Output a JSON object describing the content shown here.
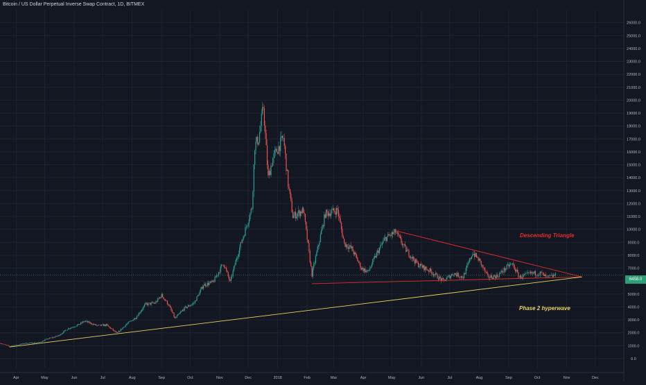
{
  "chart_data": {
    "type": "candlestick",
    "title": "Bitcoin / US Dollar Perpetual Inverse Swap Contract, 1D, BITMEX",
    "ylim": [
      -700,
      27000
    ],
    "y_ticks": [
      0,
      1000,
      2000,
      3000,
      4000,
      5000,
      6000,
      7000,
      8000,
      9000,
      10000,
      11000,
      12000,
      13000,
      14000,
      15000,
      16000,
      17000,
      18000,
      19000,
      20000,
      21000,
      22000,
      23000,
      24000,
      25000,
      26000
    ],
    "y_tick_labels": [
      "0.0",
      "1000.0",
      "2000.0",
      "3000.0",
      "4000.0",
      "5000.0",
      "6000.0",
      "7000.0",
      "8000.0",
      "9000.0",
      "10000.0",
      "11000.0",
      "12000.0",
      "13000.0",
      "14000.0",
      "15000.0",
      "16000.0",
      "17000.0",
      "18000.0",
      "19000.0",
      "20000.0",
      "21000.0",
      "22000.0",
      "23000.0",
      "24000.0",
      "25000.0",
      "26000.0"
    ],
    "x_start": "2017-03-15",
    "x_end": "2018-12-31",
    "x_ticks": [
      {
        "label": "Apr",
        "date": "2017-04-01"
      },
      {
        "label": "May",
        "date": "2017-05-01"
      },
      {
        "label": "Jun",
        "date": "2017-06-01"
      },
      {
        "label": "Jul",
        "date": "2017-07-01"
      },
      {
        "label": "Aug",
        "date": "2017-08-01"
      },
      {
        "label": "Sep",
        "date": "2017-09-01"
      },
      {
        "label": "Oct",
        "date": "2017-10-01"
      },
      {
        "label": "Nov",
        "date": "2017-11-01"
      },
      {
        "label": "Dec",
        "date": "2017-12-01"
      },
      {
        "label": "2018",
        "date": "2018-01-01"
      },
      {
        "label": "Feb",
        "date": "2018-02-01"
      },
      {
        "label": "Mar",
        "date": "2018-03-01"
      },
      {
        "label": "Apr",
        "date": "2018-04-01"
      },
      {
        "label": "May",
        "date": "2018-05-01"
      },
      {
        "label": "Jun",
        "date": "2018-06-01"
      },
      {
        "label": "Jul",
        "date": "2018-07-01"
      },
      {
        "label": "Aug",
        "date": "2018-08-01"
      },
      {
        "label": "Sep",
        "date": "2018-09-01"
      },
      {
        "label": "Oct",
        "date": "2018-10-01"
      },
      {
        "label": "Nov",
        "date": "2018-11-01"
      },
      {
        "label": "Dec",
        "date": "2018-12-01"
      }
    ],
    "price_path": [
      [
        "2017-03-15",
        1200
      ],
      [
        "2017-03-25",
        950
      ],
      [
        "2017-04-10",
        1180
      ],
      [
        "2017-04-25",
        1250
      ],
      [
        "2017-05-05",
        1550
      ],
      [
        "2017-05-15",
        1750
      ],
      [
        "2017-05-25",
        2300
      ],
      [
        "2017-06-05",
        2600
      ],
      [
        "2017-06-12",
        2900
      ],
      [
        "2017-06-25",
        2550
      ],
      [
        "2017-07-05",
        2600
      ],
      [
        "2017-07-16",
        1950
      ],
      [
        "2017-07-25",
        2600
      ],
      [
        "2017-08-05",
        3200
      ],
      [
        "2017-08-15",
        4200
      ],
      [
        "2017-08-25",
        4300
      ],
      [
        "2017-09-01",
        4900
      ],
      [
        "2017-09-08",
        4200
      ],
      [
        "2017-09-15",
        3100
      ],
      [
        "2017-09-25",
        3900
      ],
      [
        "2017-10-05",
        4300
      ],
      [
        "2017-10-15",
        5700
      ],
      [
        "2017-10-25",
        5900
      ],
      [
        "2017-11-05",
        7400
      ],
      [
        "2017-11-12",
        5900
      ],
      [
        "2017-11-20",
        8100
      ],
      [
        "2017-11-28",
        10000
      ],
      [
        "2017-12-05",
        11700
      ],
      [
        "2017-12-08",
        16500
      ],
      [
        "2017-12-12",
        17000
      ],
      [
        "2017-12-17",
        19500
      ],
      [
        "2017-12-22",
        14000
      ],
      [
        "2017-12-27",
        15500
      ],
      [
        "2018-01-07",
        17100
      ],
      [
        "2018-01-12",
        13500
      ],
      [
        "2018-01-17",
        11000
      ],
      [
        "2018-01-28",
        11500
      ],
      [
        "2018-02-06",
        6500
      ],
      [
        "2018-02-12",
        8500
      ],
      [
        "2018-02-20",
        11200
      ],
      [
        "2018-03-05",
        11500
      ],
      [
        "2018-03-12",
        8900
      ],
      [
        "2018-03-20",
        8500
      ],
      [
        "2018-03-30",
        7000
      ],
      [
        "2018-04-06",
        6700
      ],
      [
        "2018-04-15",
        8100
      ],
      [
        "2018-04-24",
        9300
      ],
      [
        "2018-05-05",
        9800
      ],
      [
        "2018-05-15",
        8500
      ],
      [
        "2018-05-28",
        7300
      ],
      [
        "2018-06-10",
        6800
      ],
      [
        "2018-06-24",
        6000
      ],
      [
        "2018-07-05",
        6600
      ],
      [
        "2018-07-15",
        6300
      ],
      [
        "2018-07-25",
        8200
      ],
      [
        "2018-08-01",
        7600
      ],
      [
        "2018-08-10",
        6300
      ],
      [
        "2018-08-20",
        6400
      ],
      [
        "2018-09-01",
        7200
      ],
      [
        "2018-09-05",
        7300
      ],
      [
        "2018-09-12",
        6300
      ],
      [
        "2018-09-25",
        6600
      ],
      [
        "2018-10-05",
        6600
      ],
      [
        "2018-10-11",
        6250
      ],
      [
        "2018-10-20",
        6450
      ]
    ],
    "overlays": [
      {
        "name": "descending-triangle-upper",
        "color": "#e02d2d",
        "from": [
          "2018-05-05",
          9900
        ],
        "to": [
          "2018-11-17",
          6320
        ]
      },
      {
        "name": "descending-triangle-lower",
        "color": "#e02d2d",
        "from": [
          "2018-02-06",
          5800
        ],
        "to": [
          "2018-11-17",
          6320
        ]
      },
      {
        "name": "phase-2-hyperwave",
        "color": "#e7d45c",
        "from": [
          "2017-03-25",
          900
        ],
        "to": [
          "2018-11-17",
          6320
        ]
      }
    ],
    "last_price": "6458.0",
    "colors": {
      "up": "#26a69a",
      "down": "#ef5350",
      "background": "#131722",
      "grid": "#1e2230",
      "axis_text": "#b2b5be"
    }
  },
  "annotations": {
    "descending_triangle": "Descending Triangle",
    "phase_2_hyperwave": "Phase 2 hyperwave"
  }
}
